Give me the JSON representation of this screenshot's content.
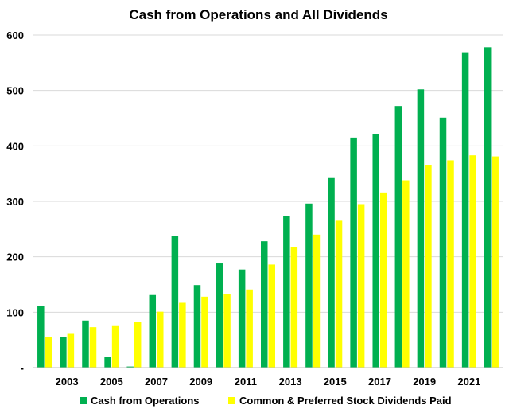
{
  "chart_data": {
    "type": "bar",
    "title": "Cash from Operations and All Dividends",
    "xlabel": "",
    "ylabel": "",
    "ylim": [
      0,
      600
    ],
    "y_ticks": [
      0,
      100,
      200,
      300,
      400,
      500,
      600
    ],
    "y_tick_labels": [
      "-",
      "100",
      "200",
      "300",
      "400",
      "500",
      "600"
    ],
    "categories": [
      "2002",
      "2003",
      "2004",
      "2005",
      "2006",
      "2007",
      "2008",
      "2009",
      "2010",
      "2011",
      "2012",
      "2013",
      "2014",
      "2015",
      "2016",
      "2017",
      "2018",
      "2019",
      "2020",
      "2021",
      "2022"
    ],
    "x_tick_labels": [
      "2003",
      "2005",
      "2007",
      "2009",
      "2011",
      "2013",
      "2015",
      "2017",
      "2019",
      "2021"
    ],
    "series": [
      {
        "name": "Cash from Operations",
        "color": "#00b050",
        "values": [
          111,
          55,
          85,
          20,
          2,
          131,
          237,
          149,
          188,
          177,
          228,
          274,
          296,
          342,
          415,
          421,
          472,
          502,
          451,
          569,
          578
        ]
      },
      {
        "name": "Common & Preferred Stock Dividends Paid",
        "color": "#ffff00",
        "values": [
          56,
          61,
          73,
          75,
          83,
          101,
          117,
          128,
          133,
          141,
          186,
          218,
          240,
          265,
          295,
          316,
          338,
          366,
          374,
          383,
          381
        ]
      }
    ],
    "grid": true,
    "legend_position": "bottom"
  }
}
